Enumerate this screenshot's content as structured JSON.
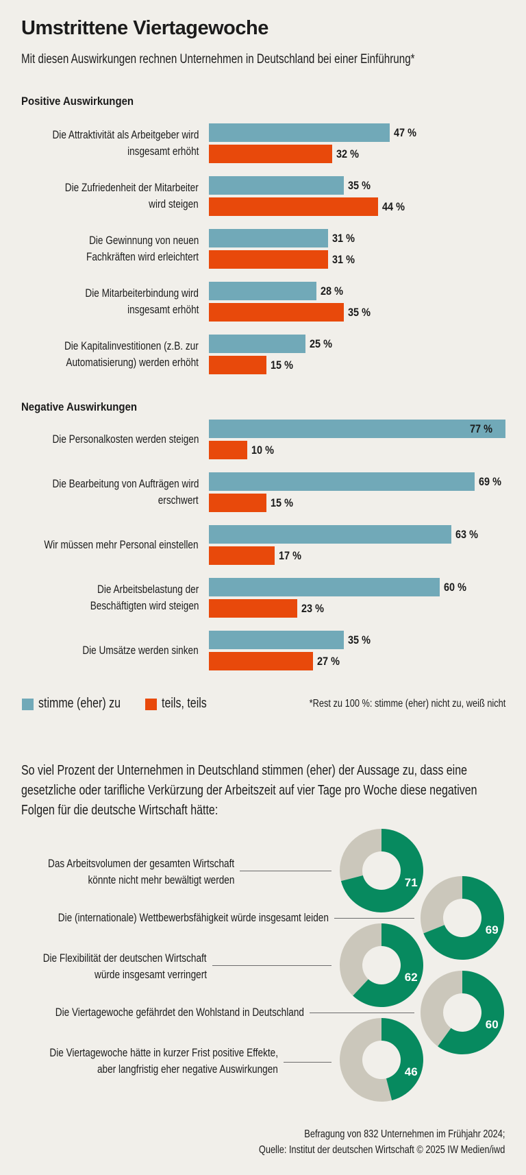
{
  "title": "Umstrittene Viertagewoche",
  "subtitle": "Mit diesen Auswirkungen rechnen Unternehmen in Deutschland bei einer Einführung*",
  "colors": {
    "agree": "#71a9b8",
    "partly": "#e8490b",
    "donut_fill": "#078a5f",
    "donut_rest": "#cbc7bb",
    "background": "#f1efea"
  },
  "legend": {
    "agree": "stimme (eher) zu",
    "partly": "teils, teils"
  },
  "footnote": "*Rest zu 100 %: stimme (eher) nicht zu, weiß nicht",
  "intro": "So viel Prozent der Unternehmen in Deutschland stimmen (eher) der Aussage zu, dass eine gesetzliche oder tarifliche Verkürzung der Arbeitszeit auf vier Tage pro Woche diese negativen Folgen für die deutsche Wirtschaft hätte:",
  "footer": {
    "line1": "Befragung von 832 Unternehmen im Frühjahr 2024;",
    "line2": "Quelle: Institut der deutschen Wirtschaft © 2025 IW Medien/iwd"
  },
  "chart_data": [
    {
      "type": "bar",
      "orientation": "horizontal",
      "title": "Positive Auswirkungen",
      "unit": "%",
      "categories": [
        [
          "Die Attraktivität als Arbeitgeber wird",
          "insgesamt erhöht"
        ],
        [
          "Die Zufriedenheit der Mitarbeiter",
          "wird steigen"
        ],
        [
          "Die Gewinnung von neuen",
          "Fachkräften wird erleichtert"
        ],
        [
          "Die Mitarbeiterbindung wird",
          "insgesamt erhöht"
        ],
        [
          "Die Kapitalinvestitionen (z.B. zur",
          "Automatisierung) werden erhöht"
        ]
      ],
      "series": [
        {
          "name": "stimme (eher) zu",
          "values": [
            47,
            35,
            31,
            28,
            25
          ],
          "labels": [
            "47 %",
            "35 %",
            "31 %",
            "28 %",
            "25 %"
          ]
        },
        {
          "name": "teils, teils",
          "values": [
            32,
            44,
            31,
            35,
            15
          ],
          "labels": [
            "32 %",
            "44 %",
            "31 %",
            "35 %",
            "15 %"
          ]
        }
      ],
      "xlim": [
        0,
        77
      ],
      "legend": "bottom-left"
    },
    {
      "type": "bar",
      "orientation": "horizontal",
      "title": "Negative Auswirkungen",
      "unit": "%",
      "categories": [
        [
          "Die Personalkosten werden steigen"
        ],
        [
          "Die Bearbeitung von Aufträgen wird",
          "erschwert"
        ],
        [
          "Wir müssen mehr Personal einstellen"
        ],
        [
          "Die Arbeitsbelastung der",
          "Beschäftigten wird steigen"
        ],
        [
          "Die Umsätze werden sinken"
        ]
      ],
      "series": [
        {
          "name": "stimme (eher) zu",
          "values": [
            77,
            69,
            63,
            60,
            35
          ],
          "labels": [
            "77 %",
            "69 %",
            "63 %",
            "60 %",
            "35 %"
          ]
        },
        {
          "name": "teils, teils",
          "values": [
            10,
            15,
            17,
            23,
            27
          ],
          "labels": [
            "10 %",
            "15 %",
            "17 %",
            "23 %",
            "27 %"
          ]
        }
      ],
      "xlim": [
        0,
        77
      ],
      "legend": "bottom-left"
    },
    {
      "type": "pie",
      "variant": "donut",
      "unit": "%",
      "categories": [
        [
          "Das Arbeitsvolumen der gesamten Wirtschaft",
          "könnte nicht mehr bewältigt werden"
        ],
        [
          "Die (internationale) Wettbewerbsfähigkeit würde insgesamt leiden"
        ],
        [
          "Die Flexibilität der deutschen Wirtschaft",
          "würde insgesamt verringert"
        ],
        [
          "Die Viertagewoche gefährdet den Wohlstand in Deutschland"
        ],
        [
          "Die Viertagewoche hätte in kurzer Frist positive Effekte,",
          "aber langfristig eher negative Auswirkungen"
        ]
      ],
      "values": [
        71,
        69,
        62,
        60,
        46
      ],
      "labels": [
        "71",
        "69",
        "62",
        "60",
        "46"
      ]
    }
  ]
}
